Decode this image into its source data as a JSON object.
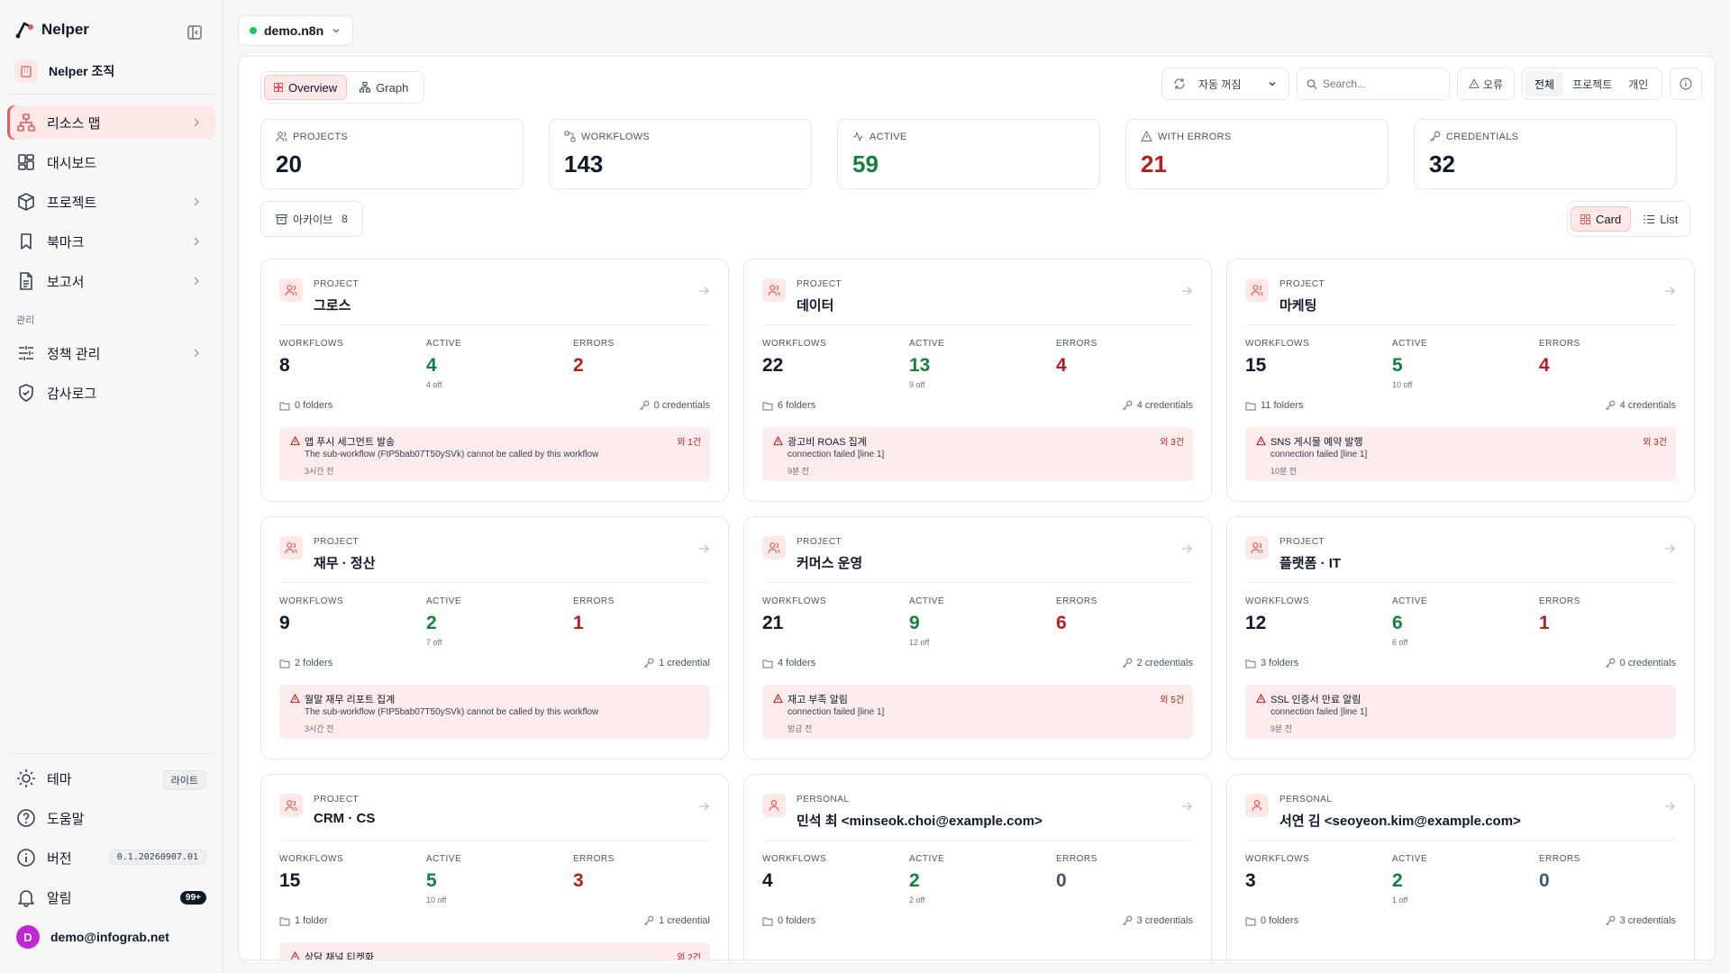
{
  "brand": {
    "name": "Nelper"
  },
  "org": {
    "name": "Nelper 조직"
  },
  "sidebar": {
    "items": [
      {
        "label": "리소스 맵"
      },
      {
        "label": "대시보드"
      },
      {
        "label": "프로젝트"
      },
      {
        "label": "북마크"
      },
      {
        "label": "보고서"
      }
    ],
    "section_label": "관리",
    "admin_items": [
      {
        "label": "정책 관리"
      },
      {
        "label": "감사로그"
      }
    ],
    "footer": {
      "theme_label": "테마",
      "theme_value": "라이트",
      "help_label": "도움말",
      "version_label": "버전",
      "version_value": "0.1.20260907.01",
      "alerts_label": "알림",
      "alerts_count": "99+",
      "user_initial": "D",
      "user_email": "demo@infograb.net"
    }
  },
  "instance": {
    "name": "demo.n8n"
  },
  "view_tabs": {
    "overview": "Overview",
    "graph": "Graph"
  },
  "toolbar": {
    "refresh_label": "자동 꺼짐",
    "search_placeholder": "Search...",
    "errors_filter": "오류",
    "scope": {
      "all": "전체",
      "project": "프로젝트",
      "personal": "개인"
    }
  },
  "stats": [
    {
      "label": "PROJECTS",
      "value": "20"
    },
    {
      "label": "WORKFLOWS",
      "value": "143"
    },
    {
      "label": "ACTIVE",
      "value": "59"
    },
    {
      "label": "WITH ERRORS",
      "value": "21"
    },
    {
      "label": "CREDENTIALS",
      "value": "32"
    }
  ],
  "archive": {
    "label": "아카이브",
    "count": "8"
  },
  "view_mode": {
    "card": "Card",
    "list": "List"
  },
  "metric_labels": {
    "workflows": "WORKFLOWS",
    "active": "ACTIVE",
    "errors": "ERRORS"
  },
  "cards": [
    {
      "type": "PROJECT",
      "name": "그로스",
      "workflows": "8",
      "active": "4",
      "active_off": "4 off",
      "errors": "2",
      "folders": "0 folders",
      "credentials": "0 credentials",
      "error": {
        "title": "앱 푸시 세그먼트 발송",
        "message": "The sub-workflow (FtP5bab07T50ySVk) cannot be called by this workflow",
        "time": "3시간 전",
        "more": "외 1건"
      }
    },
    {
      "type": "PROJECT",
      "name": "데이터",
      "workflows": "22",
      "active": "13",
      "active_off": "9 off",
      "errors": "4",
      "folders": "6 folders",
      "credentials": "4 credentials",
      "error": {
        "title": "광고비 ROAS 집계",
        "message": "connection failed [line 1]",
        "time": "9분 전",
        "more": "외 3건"
      }
    },
    {
      "type": "PROJECT",
      "name": "마케팅",
      "workflows": "15",
      "active": "5",
      "active_off": "10 off",
      "errors": "4",
      "folders": "11 folders",
      "credentials": "4 credentials",
      "error": {
        "title": "SNS 게시물 예약 발행",
        "message": "connection failed [line 1]",
        "time": "10분 전",
        "more": "외 3건"
      }
    },
    {
      "type": "PROJECT",
      "name": "재무 · 정산",
      "workflows": "9",
      "active": "2",
      "active_off": "7 off",
      "errors": "1",
      "folders": "2 folders",
      "credentials": "1 credential",
      "error": {
        "title": "월말 재무 리포트 집계",
        "message": "The sub-workflow (FtP5bab07T50ySVk) cannot be called by this workflow",
        "time": "3시간 전",
        "more": ""
      }
    },
    {
      "type": "PROJECT",
      "name": "커머스 운영",
      "workflows": "21",
      "active": "9",
      "active_off": "12 off",
      "errors": "6",
      "folders": "4 folders",
      "credentials": "2 credentials",
      "error": {
        "title": "재고 부족 알림",
        "message": "connection failed [line 1]",
        "time": "방금 전",
        "more": "외 5건"
      }
    },
    {
      "type": "PROJECT",
      "name": "플랫폼 · IT",
      "workflows": "12",
      "active": "6",
      "active_off": "6 off",
      "errors": "1",
      "folders": "3 folders",
      "credentials": "0 credentials",
      "error": {
        "title": "SSL 인증서 만료 알림",
        "message": "connection failed [line 1]",
        "time": "9분 전",
        "more": ""
      }
    },
    {
      "type": "PROJECT",
      "name": "CRM · CS",
      "workflows": "15",
      "active": "5",
      "active_off": "10 off",
      "errors": "3",
      "folders": "1 folder",
      "credentials": "1 credential",
      "error": {
        "title": "상담 채널 티켓화",
        "message": "",
        "time": "",
        "more": "외 2건"
      }
    },
    {
      "type": "PERSONAL",
      "name": "민석 최 <minseok.choi@example.com>",
      "workflows": "4",
      "active": "2",
      "active_off": "2 off",
      "errors": "0",
      "folders": "0 folders",
      "credentials": "3 credentials",
      "error": null
    },
    {
      "type": "PERSONAL",
      "name": "서연 김 <seoyeon.kim@example.com>",
      "workflows": "3",
      "active": "2",
      "active_off": "1 off",
      "errors": "0",
      "folders": "0 folders",
      "credentials": "3 credentials",
      "error": null
    }
  ]
}
